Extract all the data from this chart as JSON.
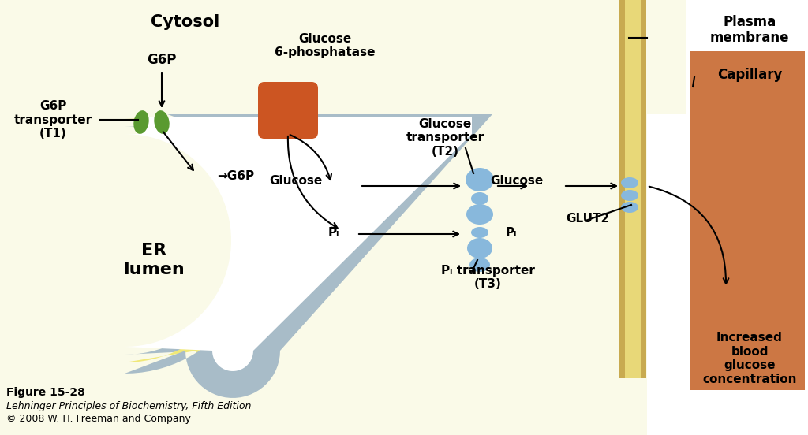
{
  "bg_color": "#fafae8",
  "white": "#ffffff",
  "er_membrane_yellow": "#f0e878",
  "er_membrane_blue": "#a8bcc8",
  "plasma_membrane_tan": "#c8aa50",
  "plasma_membrane_light": "#e8d878",
  "capillary_orange": "#cc7744",
  "g6p_green": "#5a9a30",
  "g6pase_orange": "#cc5522",
  "t2_blue": "#88b8dc",
  "glut2_blue": "#88b8dc",
  "black": "#000000",
  "cytosol_label": "Cytosol",
  "er_lumen_label": "ER\nlumen",
  "g6p_transporter_label": "G6P\ntransporter\n(T1)",
  "glucose_6p_label": "Glucose\n6-phosphatase",
  "glucose_transporter_label": "Glucose\ntransporter\n(T2)",
  "glut2_label": "GLUT2",
  "pi_transporter_label": "Pᵢ transporter\n(T3)",
  "plasma_membrane_label": "Plasma\nmembrane",
  "capillary_label": "Capillary",
  "increased_label": "Increased\nblood\nglucose\nconcentration",
  "figure_label": "Figure 15-28",
  "book_label": "Lehninger Principles of Biochemistry, Fifth Edition",
  "copyright_label": "© 2008 W. H. Freeman and Company",
  "g6p_label": "G6P",
  "g6p_lumen_label": "G6P",
  "glucose_label": "Glucose",
  "pi_label": "Pᵢ",
  "glucose2_label": "Glucose"
}
